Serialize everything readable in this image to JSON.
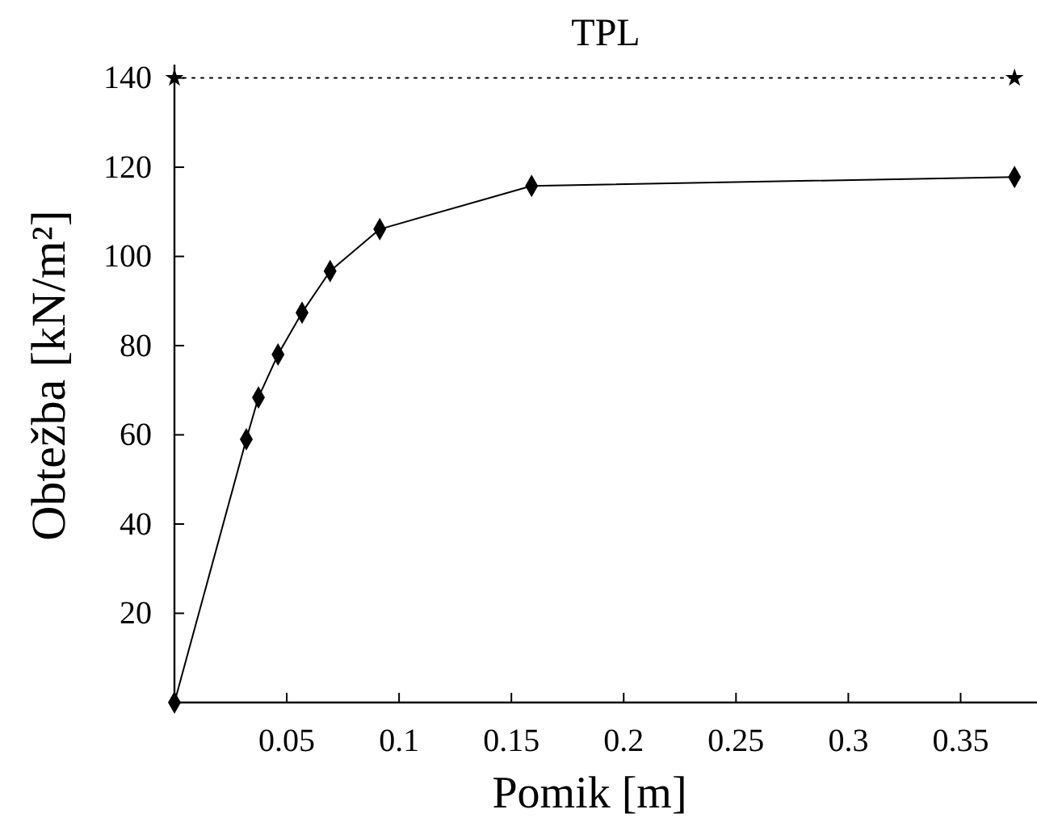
{
  "chart_data": {
    "type": "line",
    "title": "TPL",
    "xlabel": "Pomik [m]",
    "ylabel": "Obtežba  [kN/m²]",
    "xlim": [
      0,
      0.384
    ],
    "ylim": [
      0,
      143
    ],
    "xticks": [
      0.05,
      0.1,
      0.15,
      0.2,
      0.25,
      0.3,
      0.35
    ],
    "yticks": [
      20,
      40,
      60,
      80,
      100,
      120,
      140
    ],
    "grid": false,
    "series": [
      {
        "color": "#000000",
        "marker": "diamond",
        "line_style": "solid",
        "x": [
          0,
          0.032,
          0.0374,
          0.0461,
          0.0568,
          0.0693,
          0.0914,
          0.159,
          0.374
        ],
        "values": [
          0,
          59,
          68.4,
          78,
          87.4,
          96.7,
          106.1,
          115.8,
          117.8
        ]
      },
      {
        "color": "#000000",
        "marker": "star",
        "line_style": "dotted",
        "x": [
          0,
          0.374
        ],
        "values": [
          140,
          140
        ]
      }
    ]
  }
}
